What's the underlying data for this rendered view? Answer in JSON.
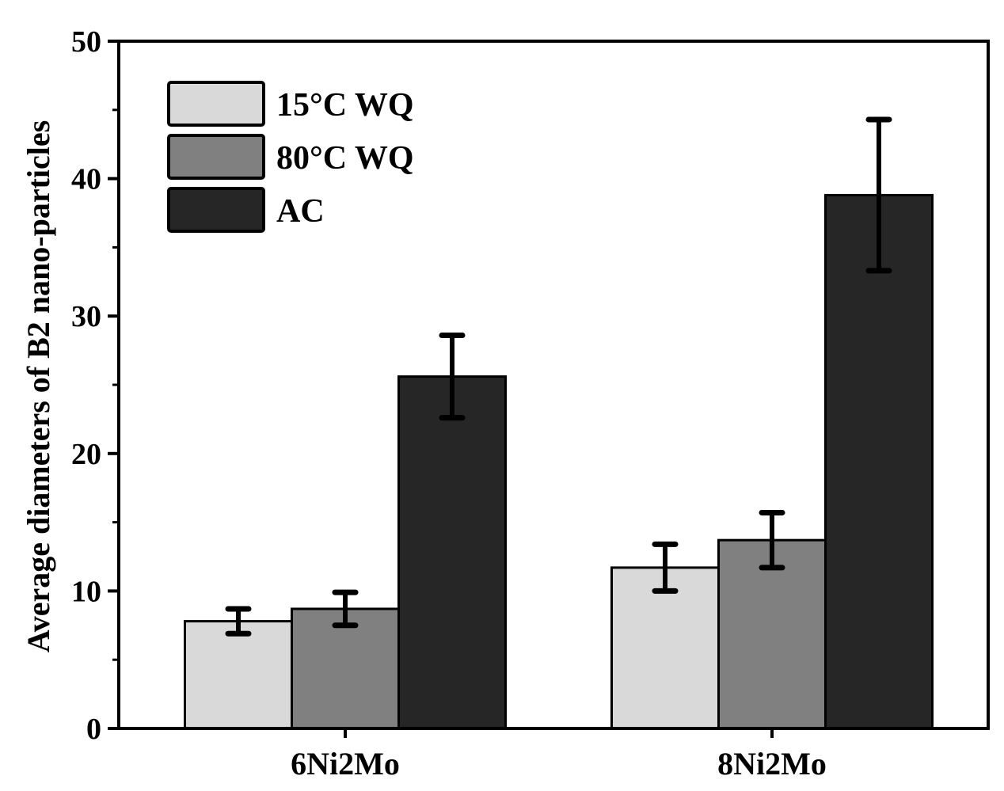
{
  "chart_data": {
    "type": "bar",
    "title": "",
    "xlabel": "",
    "ylabel": "Average diameters of B2 nano-particles",
    "ylim": [
      0,
      50
    ],
    "yticks": [
      0,
      10,
      20,
      30,
      40,
      50
    ],
    "categories": [
      "6Ni2Mo",
      "8Ni2Mo"
    ],
    "series": [
      {
        "name": "15°C WQ",
        "color": "#d9d9d9",
        "values": [
          7.8,
          11.7
        ],
        "errors": [
          0.9,
          1.7
        ]
      },
      {
        "name": "80°C WQ",
        "color": "#808080",
        "values": [
          8.7,
          13.7
        ],
        "errors": [
          1.2,
          2.0
        ]
      },
      {
        "name": "AC",
        "color": "#262626",
        "values": [
          25.6,
          38.8
        ],
        "errors": [
          3.0,
          5.5
        ]
      }
    ],
    "legend": "top-left"
  }
}
